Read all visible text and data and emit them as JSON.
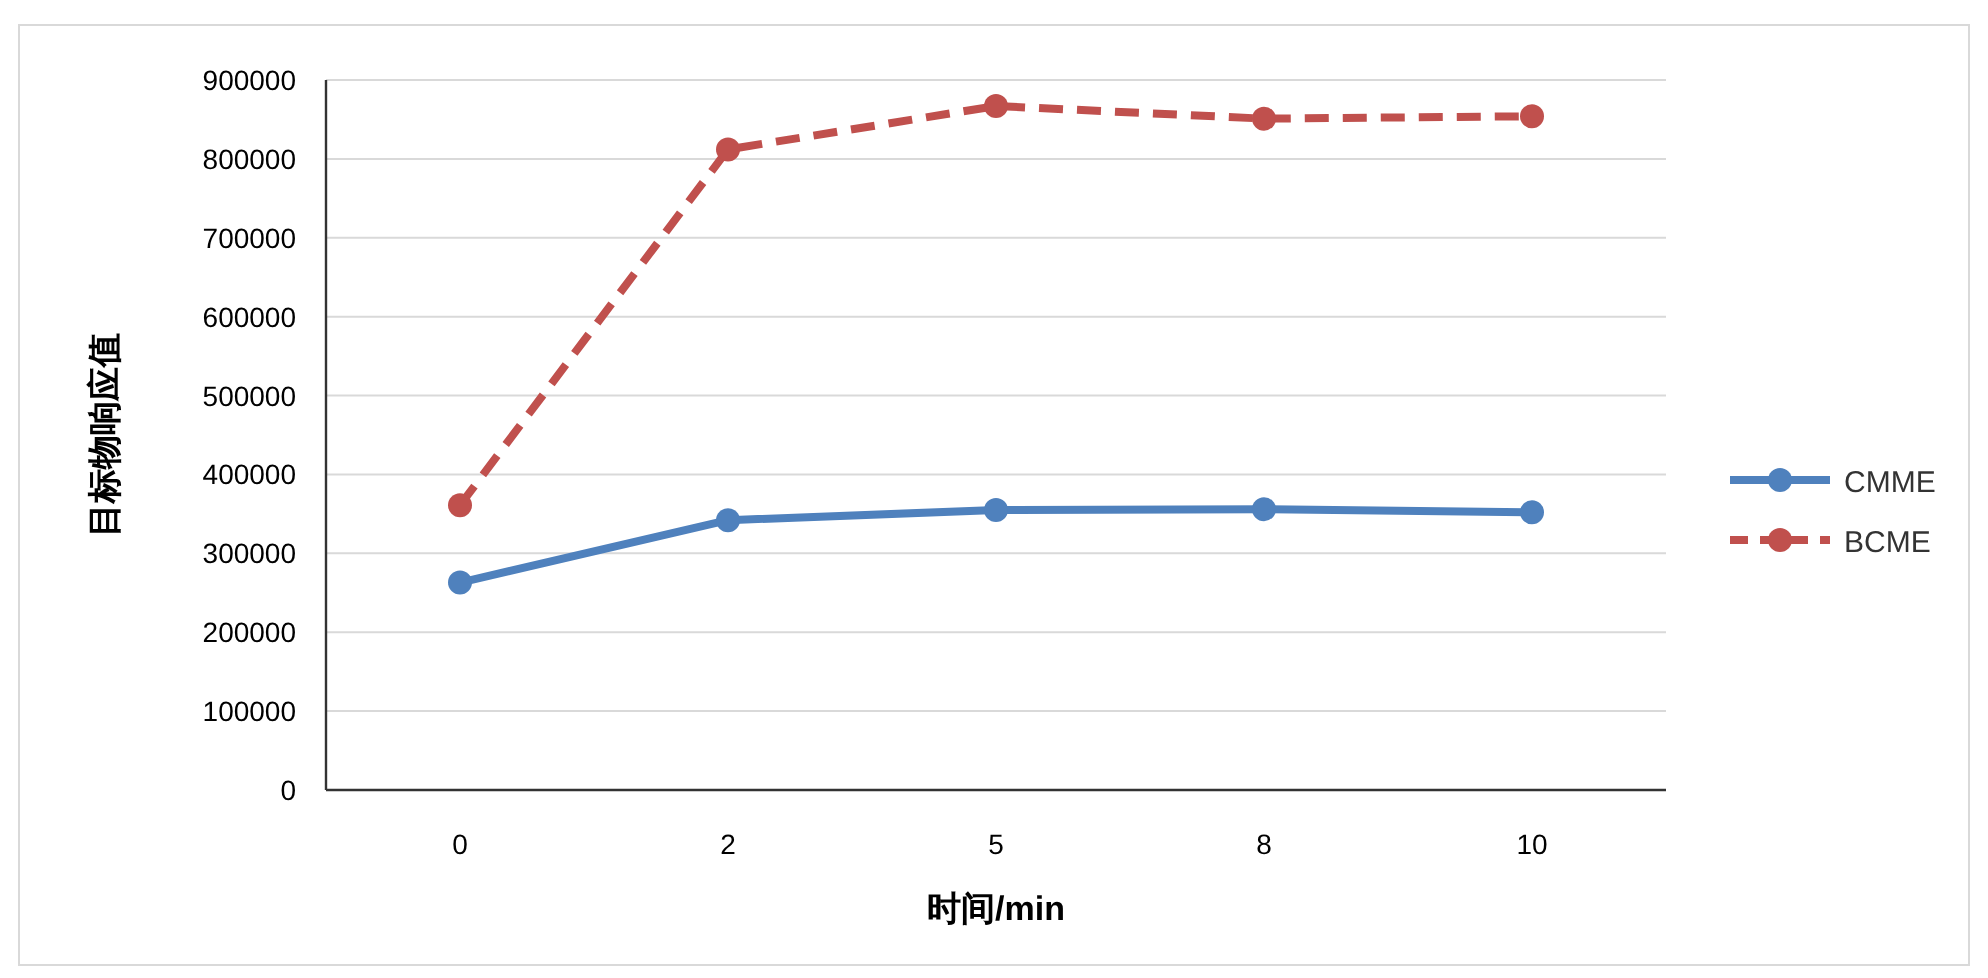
{
  "chart_data": {
    "type": "line",
    "xlabel": "时间/min",
    "ylabel": "目标物响应值",
    "categories": [
      "0",
      "2",
      "5",
      "8",
      "10"
    ],
    "series": [
      {
        "name": "CMME",
        "color": "#4f81bd",
        "line_style": "solid",
        "values": [
          263000,
          342000,
          355000,
          356000,
          352000
        ]
      },
      {
        "name": "BCME",
        "color": "#c0504d",
        "line_style": "dashed",
        "values": [
          361000,
          812000,
          867000,
          851000,
          854000
        ]
      }
    ],
    "ylim": [
      0,
      900000
    ],
    "yticks": [
      0,
      100000,
      200000,
      300000,
      400000,
      500000,
      600000,
      700000,
      800000,
      900000
    ],
    "grid": "y",
    "legend": "right",
    "marker": "circle"
  }
}
